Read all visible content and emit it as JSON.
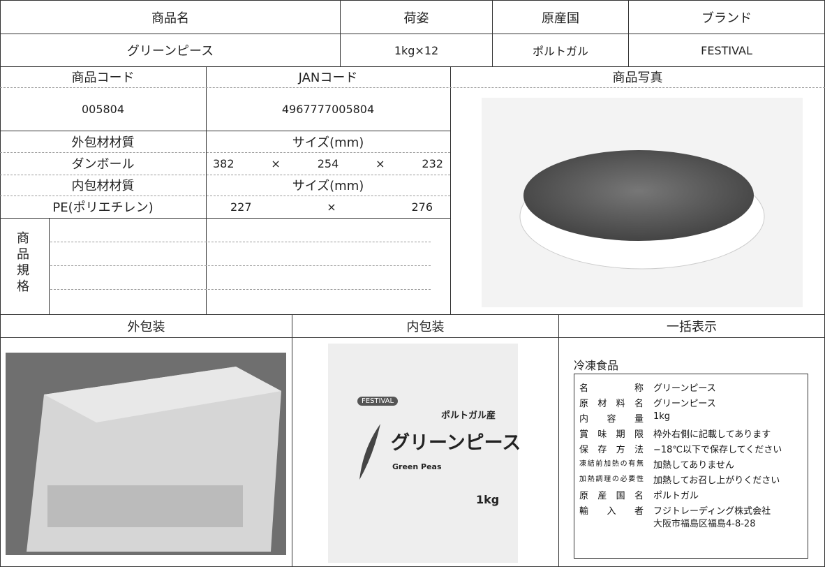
{
  "header": {
    "columns": [
      "商品名",
      "荷姿",
      "原産国",
      "ブランド"
    ],
    "values": [
      "グリーンピース",
      "1kg×12",
      "ポルトガル",
      "FESTIVAL"
    ]
  },
  "codes": {
    "product_code_label": "商品コード",
    "jan_label": "JANコード",
    "product_code": "005804",
    "jan": "4967777005804"
  },
  "outer_material": {
    "label": "外包材材質",
    "size_label": "サイズ(mm)",
    "material": "ダンボール",
    "size": [
      "382",
      "×",
      "254",
      "×",
      "232"
    ]
  },
  "inner_material": {
    "label": "内包材材質",
    "size_label": "サイズ(mm)",
    "material": "PE(ポリエチレン)",
    "size": [
      "227",
      "×",
      "276"
    ]
  },
  "spec_label": "商品規格",
  "photo_label": "商品写真",
  "sections": [
    "外包装",
    "内包装",
    "一括表示"
  ],
  "package": {
    "brand": "FESTIVAL",
    "origin": "ポルトガル産",
    "name": "グリーンピース",
    "english": "Green Peas",
    "weight": "1kg"
  },
  "label_display": {
    "heading": "冷凍食品",
    "rows": [
      [
        "名称",
        "グリーンピース"
      ],
      [
        "原材料名",
        "グリーンピース"
      ],
      [
        "内容量",
        "1kg"
      ],
      [
        "賞味期限",
        "枠外右側に記載してあります"
      ],
      [
        "保存方法",
        "−18℃以下で保存してください"
      ],
      [
        "凍結前加熱の有無",
        "加熱してありません"
      ],
      [
        "加熱調理の必要性",
        "加熱してお召し上がりください"
      ],
      [
        "原産国名",
        "ポルトガル"
      ],
      [
        "輸入者",
        "フジトレーディング株式会社"
      ]
    ],
    "address": "大阪市福島区福島4-8-28"
  }
}
